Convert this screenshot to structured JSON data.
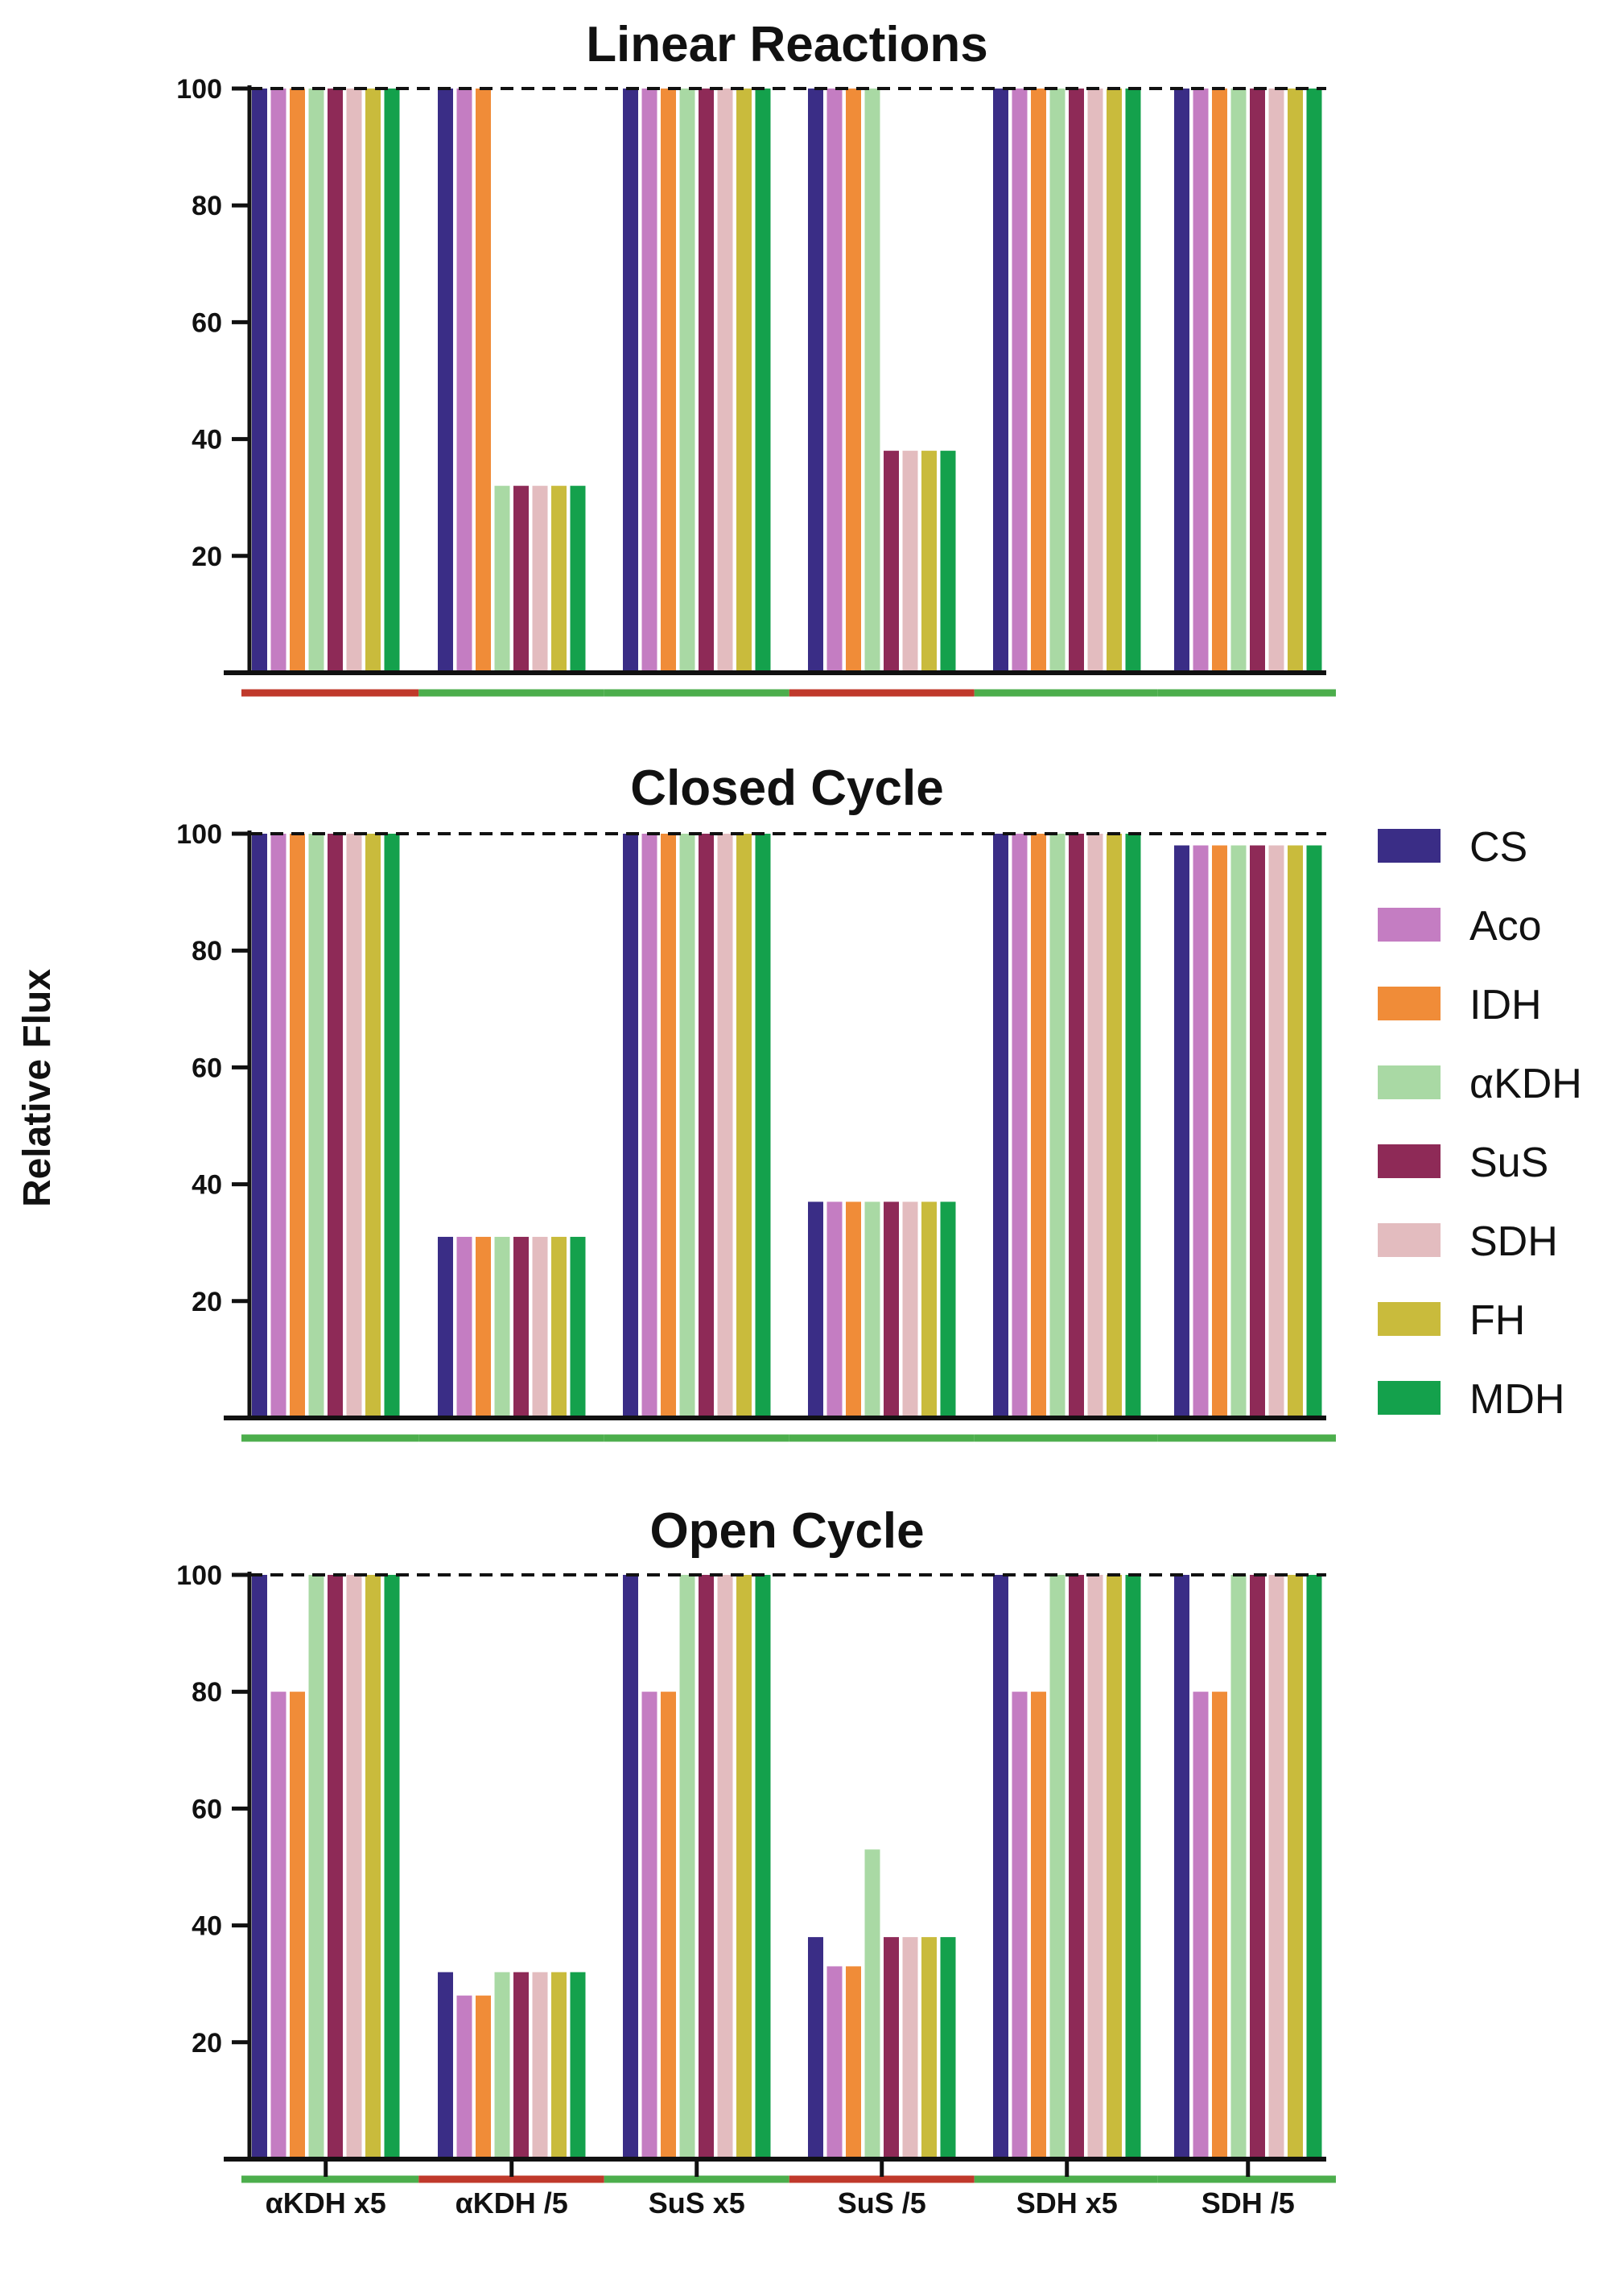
{
  "chart_data": {
    "type": "bar",
    "ylabel": "Relative Flux",
    "xlabel": "",
    "ylim": [
      0,
      100
    ],
    "yticks": [
      20,
      40,
      60,
      80,
      100
    ],
    "reference_line": 100,
    "categories": [
      "αKDH x5",
      "αKDH /5",
      "SuS x5",
      "SuS /5",
      "SDH x5",
      "SDH /5"
    ],
    "legend": [
      {
        "name": "CS",
        "color": "#3a2d86"
      },
      {
        "name": "Aco",
        "color": "#c47dc2"
      },
      {
        "name": "IDH",
        "color": "#f08c38"
      },
      {
        "name": "αKDH",
        "color": "#a9d9a4"
      },
      {
        "name": "SuS",
        "color": "#8e2a57"
      },
      {
        "name": "SDH",
        "color": "#e3bcbf"
      },
      {
        "name": "FH",
        "color": "#c9bb3c"
      },
      {
        "name": "MDH",
        "color": "#14a14c"
      }
    ],
    "indicator_colors": {
      "red": "#c0392b",
      "green": "#4cae4c"
    },
    "panels": [
      {
        "title": "Linear Reactions",
        "indicator": [
          "red",
          "green",
          "green",
          "red",
          "green",
          "green"
        ],
        "series": [
          {
            "name": "CS",
            "values": [
              100,
              100,
              100,
              100,
              100,
              100
            ]
          },
          {
            "name": "Aco",
            "values": [
              100,
              100,
              100,
              100,
              100,
              100
            ]
          },
          {
            "name": "IDH",
            "values": [
              100,
              100,
              100,
              100,
              100,
              100
            ]
          },
          {
            "name": "αKDH",
            "values": [
              100,
              32,
              100,
              100,
              100,
              100
            ]
          },
          {
            "name": "SuS",
            "values": [
              100,
              32,
              100,
              38,
              100,
              100
            ]
          },
          {
            "name": "SDH",
            "values": [
              100,
              32,
              100,
              38,
              100,
              100
            ]
          },
          {
            "name": "FH",
            "values": [
              100,
              32,
              100,
              38,
              100,
              100
            ]
          },
          {
            "name": "MDH",
            "values": [
              100,
              32,
              100,
              38,
              100,
              100
            ]
          }
        ]
      },
      {
        "title": "Closed Cycle",
        "indicator": [
          "green",
          "green",
          "green",
          "green",
          "green",
          "green"
        ],
        "series": [
          {
            "name": "CS",
            "values": [
              100,
              31,
              100,
              37,
              100,
              98
            ]
          },
          {
            "name": "Aco",
            "values": [
              100,
              31,
              100,
              37,
              100,
              98
            ]
          },
          {
            "name": "IDH",
            "values": [
              100,
              31,
              100,
              37,
              100,
              98
            ]
          },
          {
            "name": "αKDH",
            "values": [
              100,
              31,
              100,
              37,
              100,
              98
            ]
          },
          {
            "name": "SuS",
            "values": [
              100,
              31,
              100,
              37,
              100,
              98
            ]
          },
          {
            "name": "SDH",
            "values": [
              100,
              31,
              100,
              37,
              100,
              98
            ]
          },
          {
            "name": "FH",
            "values": [
              100,
              31,
              100,
              37,
              100,
              98
            ]
          },
          {
            "name": "MDH",
            "values": [
              100,
              31,
              100,
              37,
              100,
              98
            ]
          }
        ]
      },
      {
        "title": "Open Cycle",
        "indicator": [
          "green",
          "red",
          "green",
          "red",
          "green",
          "green"
        ],
        "series": [
          {
            "name": "CS",
            "values": [
              100,
              32,
              100,
              38,
              100,
              100
            ]
          },
          {
            "name": "Aco",
            "values": [
              80,
              28,
              80,
              33,
              80,
              80
            ]
          },
          {
            "name": "IDH",
            "values": [
              80,
              28,
              80,
              33,
              80,
              80
            ]
          },
          {
            "name": "αKDH",
            "values": [
              100,
              32,
              100,
              53,
              100,
              100
            ]
          },
          {
            "name": "SuS",
            "values": [
              100,
              32,
              100,
              38,
              100,
              100
            ]
          },
          {
            "name": "SDH",
            "values": [
              100,
              32,
              100,
              38,
              100,
              100
            ]
          },
          {
            "name": "FH",
            "values": [
              100,
              32,
              100,
              38,
              100,
              100
            ]
          },
          {
            "name": "MDH",
            "values": [
              100,
              32,
              100,
              38,
              100,
              100
            ]
          }
        ]
      }
    ]
  }
}
